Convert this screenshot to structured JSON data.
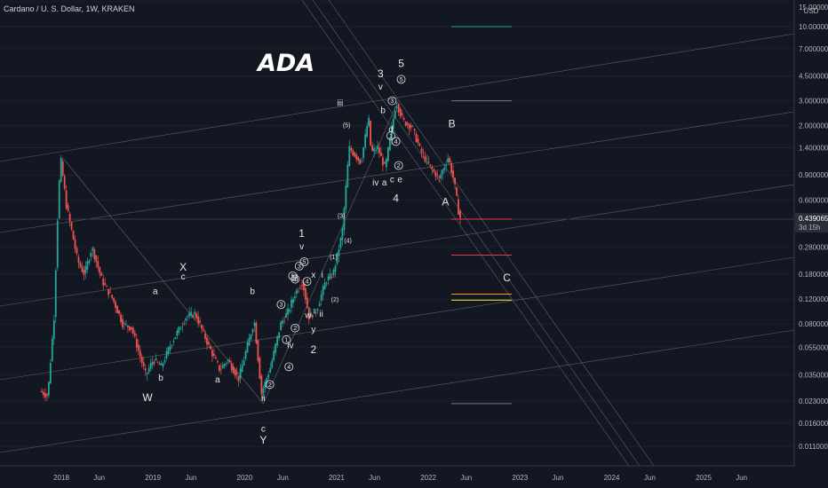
{
  "header": {
    "symbol": "Cardano / U. S. Dollar, 1W, KRAKEN"
  },
  "chart_data": {
    "type": "line",
    "title": "ADA",
    "y_scale": "log",
    "y_unit": "USD",
    "y_ticks": [
      "15.000000",
      "10.000000",
      "7.000000",
      "4.500000",
      "3.000000",
      "2.000000",
      "1.400000",
      "0.900000",
      "0.600000",
      "0.439065",
      "0.280000",
      "0.180000",
      "0.120000",
      "0.080000",
      "0.055000",
      "0.035000",
      "0.023000",
      "0.016000",
      "0.011000"
    ],
    "x_ticks": [
      "2018",
      "Jun",
      "2019",
      "Jun",
      "2020",
      "Jun",
      "2021",
      "Jun",
      "2022",
      "Jun",
      "2023",
      "Jun",
      "2024",
      "Jun",
      "2025",
      "Jun"
    ],
    "current_price": {
      "value": "0.439065",
      "countdown": "3d 15h"
    },
    "series": [
      {
        "values": [
          [
            "2017-10-15",
            0.027
          ],
          [
            "2017-11-15",
            0.025
          ],
          [
            "2017-12-10",
            0.09
          ],
          [
            "2017-12-25",
            0.5
          ],
          [
            "2018-01-05",
            1.2
          ],
          [
            "2018-01-28",
            0.55
          ],
          [
            "2018-02-20",
            0.35
          ],
          [
            "2018-03-15",
            0.22
          ],
          [
            "2018-04-10",
            0.18
          ],
          [
            "2018-05-10",
            0.28
          ],
          [
            "2018-06-20",
            0.16
          ],
          [
            "2018-08-01",
            0.12
          ],
          [
            "2018-09-10",
            0.08
          ],
          [
            "2018-10-15",
            0.075
          ],
          [
            "2018-12-10",
            0.035
          ],
          [
            "2019-01-10",
            0.045
          ],
          [
            "2019-02-10",
            0.04
          ],
          [
            "2019-03-20",
            0.058
          ],
          [
            "2019-05-20",
            0.09
          ],
          [
            "2019-06-25",
            0.095
          ],
          [
            "2019-08-20",
            0.055
          ],
          [
            "2019-10-01",
            0.038
          ],
          [
            "2019-11-01",
            0.045
          ],
          [
            "2019-12-15",
            0.033
          ],
          [
            "2020-02-15",
            0.085
          ],
          [
            "2020-03-15",
            0.026
          ],
          [
            "2020-04-20",
            0.04
          ],
          [
            "2020-05-30",
            0.08
          ],
          [
            "2020-07-01",
            0.1
          ],
          [
            "2020-07-25",
            0.13
          ],
          [
            "2020-08-25",
            0.16
          ],
          [
            "2020-09-20",
            0.09
          ],
          [
            "2020-10-20",
            0.1
          ],
          [
            "2020-11-25",
            0.16
          ],
          [
            "2020-12-25",
            0.18
          ],
          [
            "2021-01-30",
            0.35
          ],
          [
            "2021-02-27",
            1.4
          ],
          [
            "2021-04-15",
            1.1
          ],
          [
            "2021-05-15",
            2.3
          ],
          [
            "2021-05-25",
            1.3
          ],
          [
            "2021-06-20",
            1.4
          ],
          [
            "2021-07-20",
            1.0
          ],
          [
            "2021-09-02",
            2.95
          ],
          [
            "2021-10-01",
            2.15
          ],
          [
            "2021-11-05",
            1.95
          ],
          [
            "2021-12-10",
            1.3
          ],
          [
            "2022-01-20",
            1.0
          ],
          [
            "2022-02-20",
            0.85
          ],
          [
            "2022-03-28",
            1.2
          ],
          [
            "2022-04-20",
            0.82
          ],
          [
            "2022-05-12",
            0.45
          ]
        ]
      }
    ],
    "target_levels": [
      {
        "value": 10.0,
        "color": "#26a69a"
      },
      {
        "value": 3.0,
        "color": "#787b86"
      },
      {
        "value": 0.439065,
        "color": "#f23645"
      },
      {
        "value": 0.245,
        "color": "#f23645"
      },
      {
        "value": 0.13,
        "color": "#ff9800"
      },
      {
        "value": 0.118,
        "color": "#ffeb3b"
      },
      {
        "value": 0.022,
        "color": "#787b86"
      }
    ],
    "wave_labels": [
      {
        "t": "W",
        "d": "2018-12-10",
        "v": 0.023
      },
      {
        "t": "a",
        "d": "2019-01-10",
        "v": 0.13
      },
      {
        "t": "b",
        "d": "2019-02-01",
        "v": 0.032
      },
      {
        "t": "X",
        "d": "2019-05-01",
        "v": 0.19
      },
      {
        "t": "c",
        "d": "2019-05-01",
        "v": 0.165
      },
      {
        "t": "a",
        "d": "2019-09-15",
        "v": 0.031
      },
      {
        "t": "b",
        "d": "2020-02-01",
        "v": 0.13
      },
      {
        "t": "ii",
        "d": "2020-03-15",
        "v": 0.023
      },
      {
        "t": "c",
        "d": "2020-03-15",
        "v": 0.014
      },
      {
        "t": "Y",
        "d": "2020-03-15",
        "v": 0.0115
      },
      {
        "t": "1",
        "d": "2020-08-15",
        "v": 0.33
      },
      {
        "t": "v",
        "d": "2020-08-15",
        "v": 0.27
      },
      {
        "t": "iii",
        "d": "2020-07-20",
        "v": 0.16
      },
      {
        "t": "x",
        "d": "2020-10-01",
        "v": 0.17
      },
      {
        "t": "w",
        "d": "2020-09-10",
        "v": 0.088
      },
      {
        "t": "y",
        "d": "2020-10-01",
        "v": 0.07
      },
      {
        "t": "2",
        "d": "2020-10-01",
        "v": 0.05
      },
      {
        "t": "ii",
        "d": "2020-11-01",
        "v": 0.09
      },
      {
        "t": "i",
        "d": "2020-11-05",
        "v": 0.17
      },
      {
        "t": "iv",
        "d": "2020-07-01",
        "v": 0.054
      },
      {
        "t": "iii",
        "d": "2021-01-15",
        "v": 2.75
      },
      {
        "t": "3",
        "d": "2021-06-25",
        "v": 4.4
      },
      {
        "t": "v",
        "d": "2021-06-25",
        "v": 3.6
      },
      {
        "t": "b",
        "d": "2021-07-05",
        "v": 2.45
      },
      {
        "t": "d",
        "d": "2021-08-05",
        "v": 1.8
      },
      {
        "t": "iv",
        "d": "2021-06-05",
        "v": 0.76
      },
      {
        "t": "a",
        "d": "2021-07-10",
        "v": 0.76
      },
      {
        "t": "c",
        "d": "2021-08-10",
        "v": 0.8
      },
      {
        "t": "e",
        "d": "2021-09-10",
        "v": 0.8
      },
      {
        "t": "4",
        "d": "2021-08-25",
        "v": 0.58
      },
      {
        "t": "5",
        "d": "2021-09-15",
        "v": 5.2
      },
      {
        "t": "B",
        "d": "2022-04-05",
        "v": 1.95
      },
      {
        "t": "A",
        "d": "2022-03-10",
        "v": 0.55
      },
      {
        "t": "C",
        "d": "2022-11-10",
        "v": 0.16
      }
    ],
    "circled_labels": [
      {
        "t": "1",
        "d": "2020-06-15",
        "v": 0.062
      },
      {
        "t": "2",
        "d": "2020-04-10",
        "v": 0.03
      },
      {
        "t": "3",
        "d": "2020-05-25",
        "v": 0.11
      },
      {
        "t": "4",
        "d": "2020-06-25",
        "v": 0.04
      },
      {
        "t": "2",
        "d": "2020-07-20",
        "v": 0.075
      },
      {
        "t": "1",
        "d": "2020-07-20",
        "v": 0.166
      },
      {
        "t": "3",
        "d": "2020-08-05",
        "v": 0.205
      },
      {
        "t": "5",
        "d": "2020-08-25",
        "v": 0.22
      },
      {
        "t": "4",
        "d": "2020-09-05",
        "v": 0.16
      },
      {
        "t": "5",
        "d": "2020-07-10",
        "v": 0.175
      },
      {
        "t": "1",
        "d": "2021-08-05",
        "v": 1.7
      },
      {
        "t": "4",
        "d": "2021-08-25",
        "v": 1.55
      },
      {
        "t": "2",
        "d": "2021-09-05",
        "v": 1.05
      },
      {
        "t": "3",
        "d": "2021-08-10",
        "v": 3.0
      },
      {
        "t": "5",
        "d": "2021-09-15",
        "v": 4.25
      }
    ],
    "bracket_labels": [
      {
        "t": "(1)",
        "d": "2020-12-20",
        "v": 0.23
      },
      {
        "t": "(2)",
        "d": "2020-12-25",
        "v": 0.115
      },
      {
        "t": "(3)",
        "d": "2021-01-20",
        "v": 0.45
      },
      {
        "t": "(4)",
        "d": "2021-02-15",
        "v": 0.3
      },
      {
        "t": "(5)",
        "d": "2021-02-10",
        "v": 1.95
      }
    ]
  }
}
